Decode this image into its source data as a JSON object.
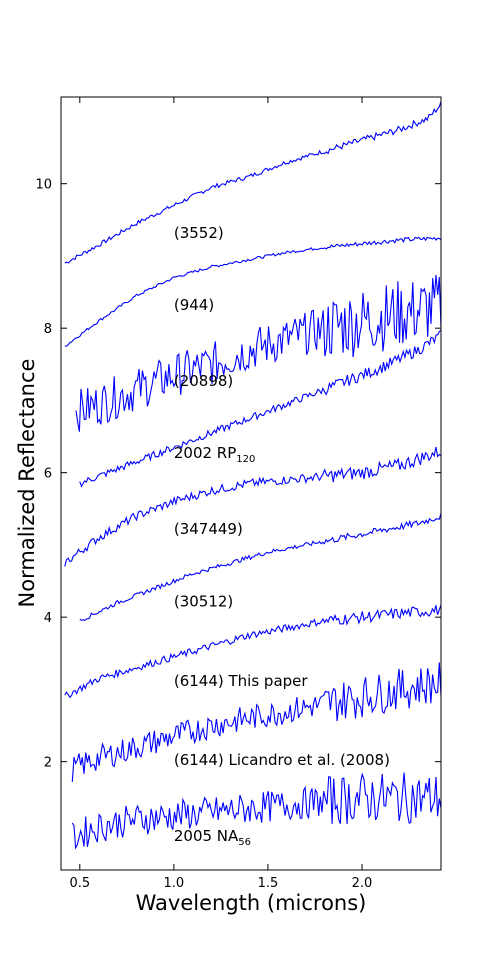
{
  "chart_data": {
    "type": "line",
    "title": "",
    "xlabel": "Wavelength (microns)",
    "ylabel": "Normalized Reflectance",
    "xlim": [
      0.4,
      2.42
    ],
    "ylim": [
      0.5,
      11.2
    ],
    "xticks": [
      0.5,
      1.0,
      1.5,
      2.0
    ],
    "xtick_labels": [
      "0.5",
      "1.0",
      "1.5",
      "2.0"
    ],
    "yticks": [
      2,
      4,
      6,
      8,
      10
    ],
    "ytick_labels": [
      "2",
      "4",
      "6",
      "8",
      "10"
    ],
    "grid": false,
    "color": "#0000ff",
    "series": [
      {
        "name": "(3552)",
        "sub": "",
        "x": [
          0.42,
          0.6,
          0.8,
          1.0,
          1.2,
          1.4,
          1.6,
          1.8,
          2.0,
          2.2,
          2.35,
          2.42
        ],
        "y": [
          8.9,
          9.15,
          9.45,
          9.7,
          9.95,
          10.1,
          10.3,
          10.45,
          10.6,
          10.75,
          10.9,
          11.1
        ],
        "noise": 0.03
      },
      {
        "name": "(944)",
        "sub": "",
        "x": [
          0.42,
          0.6,
          0.8,
          1.0,
          1.2,
          1.4,
          1.6,
          1.8,
          2.0,
          2.2,
          2.42
        ],
        "y": [
          7.75,
          8.1,
          8.45,
          8.7,
          8.85,
          8.95,
          9.05,
          9.12,
          9.17,
          9.22,
          9.25
        ],
        "noise": 0.02
      },
      {
        "name": "(20898)",
        "sub": "",
        "x": [
          0.48,
          0.6,
          0.8,
          1.0,
          1.2,
          1.4,
          1.6,
          1.8,
          2.0,
          2.2,
          2.42
        ],
        "y": [
          6.85,
          6.95,
          7.15,
          7.35,
          7.5,
          7.7,
          7.85,
          8.0,
          8.1,
          8.2,
          8.3
        ],
        "noise": 0.3
      },
      {
        "name": "2002 RP",
        "sub": "120",
        "x": [
          0.5,
          0.7,
          0.9,
          1.1,
          1.3,
          1.5,
          1.7,
          1.9,
          2.1,
          2.3,
          2.42
        ],
        "y": [
          5.85,
          6.05,
          6.25,
          6.45,
          6.65,
          6.85,
          7.05,
          7.25,
          7.45,
          7.7,
          7.9
        ],
        "noise": 0.05
      },
      {
        "name": "(347449)",
        "sub": "",
        "x": [
          0.42,
          0.6,
          0.8,
          1.0,
          1.2,
          1.4,
          1.6,
          1.8,
          2.0,
          2.2,
          2.42
        ],
        "y": [
          4.75,
          5.1,
          5.4,
          5.6,
          5.75,
          5.85,
          5.9,
          5.95,
          6.0,
          6.1,
          6.3
        ],
        "noise": 0.06
      },
      {
        "name": "(30512)",
        "sub": "",
        "x": [
          0.5,
          0.7,
          0.9,
          1.1,
          1.3,
          1.5,
          1.7,
          1.9,
          2.1,
          2.3,
          2.42
        ],
        "y": [
          3.95,
          4.2,
          4.4,
          4.6,
          4.75,
          4.9,
          5.0,
          5.1,
          5.2,
          5.3,
          5.4
        ],
        "noise": 0.03
      },
      {
        "name": "(6144) This paper",
        "sub": "",
        "x": [
          0.42,
          0.6,
          0.8,
          1.0,
          1.2,
          1.4,
          1.6,
          1.8,
          2.0,
          2.2,
          2.42
        ],
        "y": [
          2.9,
          3.15,
          3.3,
          3.45,
          3.6,
          3.75,
          3.85,
          3.95,
          4.0,
          4.05,
          4.1
        ],
        "noise": 0.05
      },
      {
        "name": "(6144) Licandro et al. (2008)",
        "sub": "",
        "x": [
          0.46,
          0.6,
          0.8,
          1.0,
          1.2,
          1.4,
          1.6,
          1.8,
          2.0,
          2.2,
          2.42
        ],
        "y": [
          1.9,
          2.05,
          2.2,
          2.35,
          2.5,
          2.6,
          2.7,
          2.8,
          2.9,
          3.0,
          3.1
        ],
        "noise": 0.18
      },
      {
        "name": "2005 NA",
        "sub": "56",
        "x": [
          0.46,
          0.6,
          0.8,
          1.0,
          1.2,
          1.4,
          1.6,
          1.8,
          2.0,
          2.2,
          2.42
        ],
        "y": [
          0.95,
          1.1,
          1.2,
          1.25,
          1.3,
          1.35,
          1.4,
          1.45,
          1.5,
          1.5,
          1.5
        ],
        "noise": 0.22
      }
    ],
    "labels": [
      {
        "series": 0,
        "x": 1.0,
        "y": 9.25
      },
      {
        "series": 1,
        "x": 1.0,
        "y": 8.25
      },
      {
        "series": 2,
        "x": 1.0,
        "y": 7.2
      },
      {
        "series": 3,
        "x": 1.0,
        "y": 6.2
      },
      {
        "series": 4,
        "x": 1.0,
        "y": 5.15
      },
      {
        "series": 5,
        "x": 1.0,
        "y": 4.15
      },
      {
        "series": 6,
        "x": 1.0,
        "y": 3.05
      },
      {
        "series": 7,
        "x": 1.0,
        "y": 1.95
      },
      {
        "series": 8,
        "x": 1.0,
        "y": 0.9
      }
    ]
  }
}
